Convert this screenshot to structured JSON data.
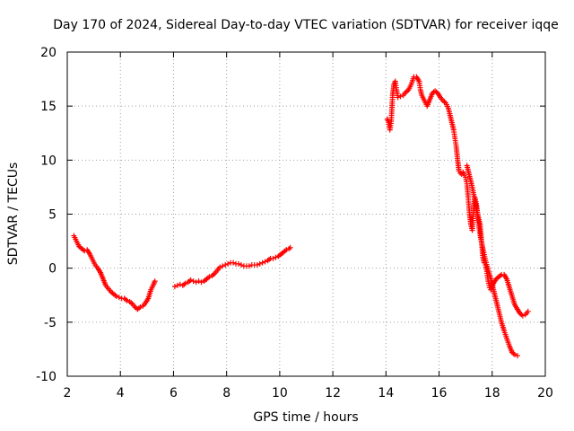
{
  "chart_data": {
    "type": "scatter",
    "title": "Day 170 of 2024, Sidereal Day-to-day VTEC variation (SDTVAR) for receiver iqqe",
    "xlabel": "GPS time / hours",
    "ylabel": "SDTVAR / TECUs",
    "xlim": [
      2,
      20
    ],
    "ylim": [
      -10,
      20
    ],
    "xticks": [
      2,
      4,
      6,
      8,
      10,
      12,
      14,
      16,
      18,
      20
    ],
    "yticks": [
      -10,
      -5,
      0,
      5,
      10,
      15,
      20
    ],
    "grid": true,
    "marker": "plus",
    "series": [
      {
        "name": "SDTVAR",
        "color": "#ff0000",
        "segments": [
          [
            [
              2.25,
              3.0
            ],
            [
              2.35,
              2.5
            ],
            [
              2.45,
              2.0
            ],
            [
              2.55,
              1.8
            ],
            [
              2.65,
              1.6
            ],
            [
              2.75,
              1.7
            ],
            [
              2.85,
              1.3
            ],
            [
              2.95,
              0.8
            ],
            [
              3.05,
              0.3
            ],
            [
              3.15,
              0.0
            ],
            [
              3.25,
              -0.4
            ],
            [
              3.35,
              -1.0
            ],
            [
              3.45,
              -1.6
            ],
            [
              3.55,
              -1.9
            ],
            [
              3.65,
              -2.2
            ],
            [
              3.75,
              -2.4
            ],
            [
              3.85,
              -2.6
            ],
            [
              3.95,
              -2.7
            ],
            [
              4.05,
              -2.8
            ],
            [
              4.15,
              -2.8
            ],
            [
              4.25,
              -3.0
            ],
            [
              4.35,
              -3.1
            ],
            [
              4.45,
              -3.3
            ],
            [
              4.55,
              -3.6
            ],
            [
              4.65,
              -3.8
            ],
            [
              4.75,
              -3.6
            ],
            [
              4.85,
              -3.5
            ],
            [
              4.95,
              -3.2
            ],
            [
              5.05,
              -2.8
            ],
            [
              5.15,
              -2.0
            ],
            [
              5.25,
              -1.5
            ],
            [
              5.3,
              -1.2
            ]
          ],
          [
            [
              6.05,
              -1.7
            ],
            [
              6.15,
              -1.6
            ],
            [
              6.25,
              -1.5
            ],
            [
              6.35,
              -1.6
            ],
            [
              6.45,
              -1.4
            ],
            [
              6.55,
              -1.3
            ],
            [
              6.65,
              -1.1
            ],
            [
              6.75,
              -1.2
            ],
            [
              6.85,
              -1.3
            ],
            [
              6.95,
              -1.2
            ],
            [
              7.05,
              -1.3
            ],
            [
              7.15,
              -1.2
            ],
            [
              7.25,
              -1.0
            ],
            [
              7.35,
              -0.8
            ],
            [
              7.45,
              -0.7
            ],
            [
              7.55,
              -0.5
            ],
            [
              7.65,
              -0.2
            ],
            [
              7.75,
              0.1
            ],
            [
              7.85,
              0.2
            ],
            [
              7.95,
              0.3
            ],
            [
              8.05,
              0.4
            ],
            [
              8.15,
              0.5
            ],
            [
              8.25,
              0.5
            ],
            [
              8.35,
              0.4
            ],
            [
              8.45,
              0.4
            ],
            [
              8.55,
              0.3
            ],
            [
              8.65,
              0.2
            ],
            [
              8.75,
              0.2
            ],
            [
              8.85,
              0.2
            ],
            [
              8.95,
              0.3
            ],
            [
              9.05,
              0.3
            ],
            [
              9.15,
              0.3
            ],
            [
              9.25,
              0.4
            ],
            [
              9.35,
              0.5
            ],
            [
              9.45,
              0.6
            ],
            [
              9.55,
              0.7
            ],
            [
              9.65,
              0.9
            ],
            [
              9.75,
              0.9
            ],
            [
              9.85,
              1.0
            ],
            [
              9.95,
              1.1
            ],
            [
              10.05,
              1.3
            ],
            [
              10.15,
              1.5
            ],
            [
              10.25,
              1.7
            ],
            [
              10.35,
              1.8
            ],
            [
              10.4,
              1.9
            ]
          ],
          [
            [
              14.05,
              13.8
            ],
            [
              14.1,
              13.5
            ],
            [
              14.15,
              12.8
            ],
            [
              14.2,
              13.6
            ],
            [
              14.25,
              16.0
            ],
            [
              14.3,
              17.0
            ],
            [
              14.35,
              17.3
            ],
            [
              14.4,
              16.5
            ],
            [
              14.45,
              15.8
            ],
            [
              14.55,
              15.9
            ],
            [
              14.65,
              16.0
            ],
            [
              14.75,
              16.3
            ],
            [
              14.85,
              16.5
            ],
            [
              14.95,
              17.0
            ],
            [
              15.05,
              17.7
            ],
            [
              15.15,
              17.7
            ],
            [
              15.25,
              17.3
            ],
            [
              15.3,
              16.5
            ],
            [
              15.35,
              16.0
            ],
            [
              15.45,
              15.5
            ],
            [
              15.55,
              15.0
            ],
            [
              15.65,
              15.6
            ],
            [
              15.75,
              16.2
            ],
            [
              15.85,
              16.4
            ],
            [
              15.95,
              16.2
            ],
            [
              16.05,
              15.8
            ],
            [
              16.15,
              15.5
            ],
            [
              16.25,
              15.3
            ],
            [
              16.35,
              14.8
            ],
            [
              16.45,
              13.8
            ],
            [
              16.55,
              12.8
            ],
            [
              16.6,
              12.0
            ],
            [
              16.65,
              11.2
            ],
            [
              16.7,
              10.0
            ],
            [
              16.75,
              9.0
            ],
            [
              16.8,
              8.8
            ],
            [
              16.85,
              8.7
            ],
            [
              16.9,
              8.9
            ],
            [
              16.95,
              8.6
            ],
            [
              17.0,
              8.4
            ],
            [
              17.05,
              7.8
            ],
            [
              17.1,
              6.5
            ],
            [
              17.15,
              5.0
            ],
            [
              17.2,
              4.0
            ],
            [
              17.25,
              3.5
            ],
            [
              17.3,
              5.5
            ],
            [
              17.35,
              6.5
            ],
            [
              17.4,
              6.0
            ],
            [
              17.45,
              5.0
            ],
            [
              17.5,
              4.5
            ],
            [
              17.55,
              4.0
            ],
            [
              17.6,
              2.5
            ],
            [
              17.65,
              1.0
            ],
            [
              17.7,
              0.5
            ],
            [
              17.75,
              0.3
            ],
            [
              17.8,
              -0.3
            ],
            [
              17.85,
              -1.2
            ],
            [
              17.9,
              -1.8
            ],
            [
              17.95,
              -2.0
            ],
            [
              18.0,
              -1.7
            ],
            [
              18.05,
              -1.4
            ],
            [
              18.15,
              -1.0
            ],
            [
              18.25,
              -0.8
            ],
            [
              18.35,
              -0.6
            ],
            [
              18.45,
              -0.6
            ],
            [
              18.55,
              -1.0
            ],
            [
              18.65,
              -1.8
            ],
            [
              18.75,
              -2.6
            ],
            [
              18.85,
              -3.4
            ],
            [
              18.95,
              -3.8
            ],
            [
              19.05,
              -4.2
            ],
            [
              19.15,
              -4.4
            ],
            [
              19.25,
              -4.3
            ],
            [
              19.35,
              -4.0
            ]
          ],
          [
            [
              17.05,
              9.5
            ],
            [
              17.15,
              8.5
            ],
            [
              17.25,
              7.5
            ],
            [
              17.35,
              6.3
            ],
            [
              17.45,
              4.8
            ],
            [
              17.55,
              3.0
            ],
            [
              17.65,
              1.8
            ],
            [
              17.75,
              0.7
            ],
            [
              17.85,
              -0.2
            ],
            [
              17.95,
              -1.0
            ],
            [
              18.05,
              -2.0
            ],
            [
              18.15,
              -3.0
            ],
            [
              18.25,
              -4.0
            ],
            [
              18.35,
              -5.0
            ],
            [
              18.45,
              -5.8
            ],
            [
              18.55,
              -6.5
            ],
            [
              18.65,
              -7.2
            ],
            [
              18.75,
              -7.8
            ],
            [
              18.85,
              -8.0
            ],
            [
              18.95,
              -8.1
            ]
          ]
        ]
      }
    ]
  }
}
